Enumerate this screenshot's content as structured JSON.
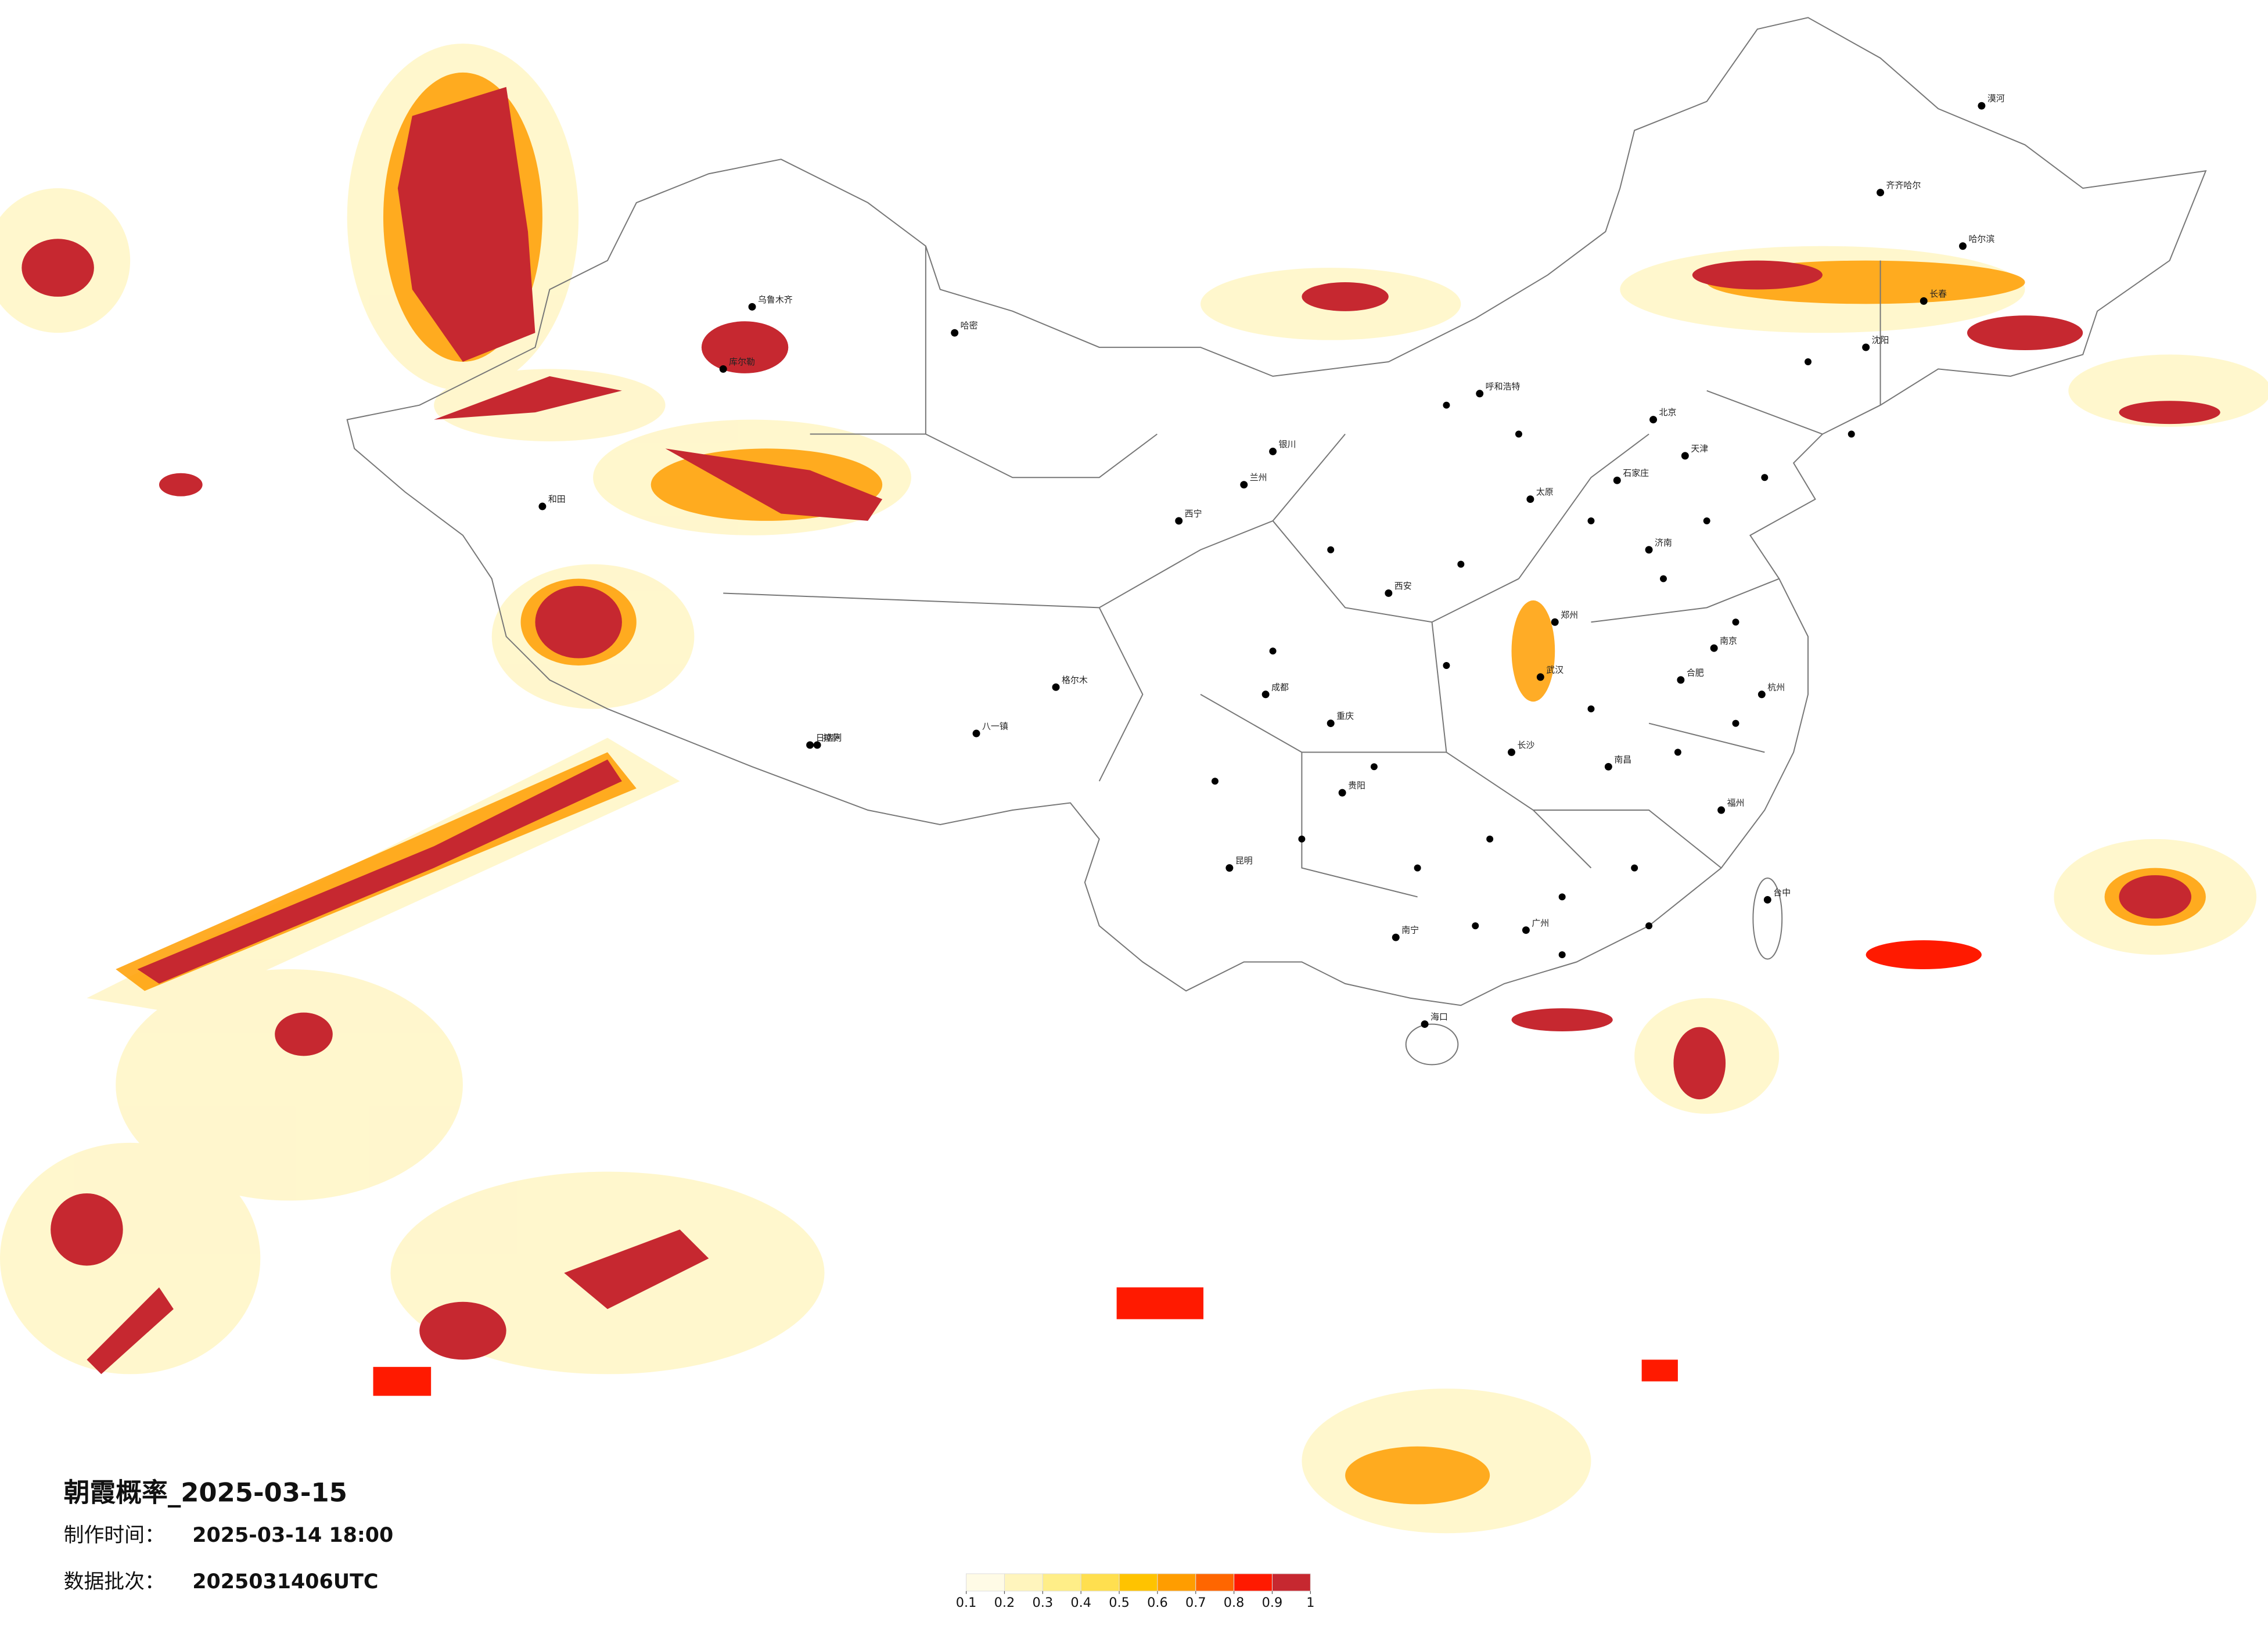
{
  "title": "朝霞概率_2025-03-15",
  "production_time": {
    "label": "制作时间：",
    "value": "2025-03-14 18:00"
  },
  "batch": {
    "label": "数据批次：",
    "value": "2025031406UTC"
  },
  "legend": {
    "colors": [
      "#fffbe6",
      "#fff5bd",
      "#ffee88",
      "#ffdf4f",
      "#ffc300",
      "#ff9d00",
      "#ff6600",
      "#ff1a00",
      "#c62830"
    ],
    "ticks": [
      0.1,
      0.2,
      0.3,
      0.4,
      0.5,
      0.6,
      0.7,
      0.8,
      0.9,
      1
    ]
  },
  "cities": [
    "漠河",
    "齐齐哈尔",
    "哈尔滨",
    "长春",
    "沈阳",
    "呼和浩特",
    "北京",
    "天津",
    "石家庄",
    "太原",
    "济南",
    "郑州",
    "西安",
    "兰州",
    "西宁",
    "银川",
    "乌鲁木齐",
    "和田",
    "拉萨",
    "成都",
    "重庆",
    "贵阳",
    "昆明",
    "南宁",
    "广州",
    "长沙",
    "武汉",
    "南昌",
    "合肥",
    "南京",
    "杭州",
    "福州",
    "台中",
    "海口",
    "库尔勒",
    "哈密",
    "格尔木",
    "日喀则",
    "八一镇"
  ]
}
